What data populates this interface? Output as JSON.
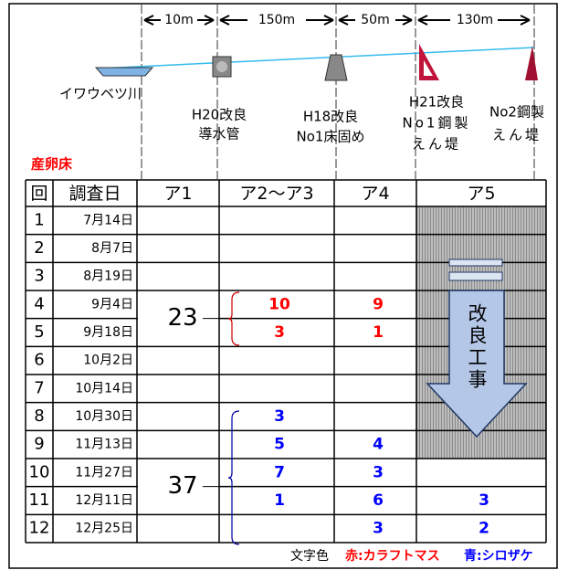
{
  "diagram": {
    "distances": [
      "10m",
      "150m",
      "50m",
      "130m"
    ],
    "structures": [
      {
        "lines": [
          "イワウベツ川"
        ]
      },
      {
        "lines": [
          "H20改良",
          "導水管"
        ]
      },
      {
        "lines": [
          "H18改良",
          "No1床固め"
        ]
      },
      {
        "lines": [
          "H21改良",
          "No1鋼製",
          "えん堤"
        ]
      },
      {
        "lines": [
          "No2鋼製",
          "えん堤"
        ]
      }
    ]
  },
  "spawning_label": "産卵床",
  "table": {
    "headers": [
      "回",
      "調査日",
      "ア1",
      "ア2～ア3",
      "ア4",
      "ア5"
    ],
    "rows": [
      {
        "no": "1",
        "date": "7月14日",
        "cells": [
          null,
          null,
          null,
          null
        ]
      },
      {
        "no": "2",
        "date": "8月7日",
        "cells": [
          null,
          null,
          null,
          null
        ]
      },
      {
        "no": "3",
        "date": "8月19日",
        "cells": [
          null,
          null,
          null,
          null
        ]
      },
      {
        "no": "4",
        "date": "9月4日",
        "cells": [
          {
            "value": 23,
            "color": "#000000"
          },
          {
            "value": 10,
            "color": "#ff0000"
          },
          {
            "value": 9,
            "color": "#ff0000"
          },
          null
        ]
      },
      {
        "no": "5",
        "date": "9月18日",
        "cells": [
          null,
          {
            "value": 3,
            "color": "#ff0000"
          },
          {
            "value": 1,
            "color": "#ff0000"
          },
          null
        ]
      },
      {
        "no": "6",
        "date": "10月2日",
        "cells": [
          null,
          null,
          null,
          null
        ]
      },
      {
        "no": "7",
        "date": "10月14日",
        "cells": [
          null,
          null,
          null,
          null
        ]
      },
      {
        "no": "8",
        "date": "10月30日",
        "cells": [
          null,
          {
            "value": 3,
            "color": "#0000ff"
          },
          null,
          null
        ]
      },
      {
        "no": "9",
        "date": "11月13日",
        "cells": [
          null,
          {
            "value": 5,
            "color": "#0000ff"
          },
          {
            "value": 4,
            "color": "#0000ff"
          },
          null
        ]
      },
      {
        "no": "10",
        "date": "11月27日",
        "cells": [
          {
            "value": 37,
            "color": "#000000"
          },
          {
            "value": 7,
            "color": "#0000ff"
          },
          {
            "value": 3,
            "color": "#0000ff"
          },
          null
        ]
      },
      {
        "no": "11",
        "date": "12月11日",
        "cells": [
          null,
          {
            "value": 1,
            "color": "#0000ff"
          },
          {
            "value": 6,
            "color": "#0000ff"
          },
          {
            "value": 3,
            "color": "#0000ff"
          }
        ]
      },
      {
        "no": "12",
        "date": "12月25日",
        "cells": [
          null,
          null,
          {
            "value": 3,
            "color": "#0000ff"
          },
          {
            "value": 2,
            "color": "#0000ff"
          }
        ]
      }
    ],
    "arrow_text": "改良工事"
  },
  "legend": {
    "prefix": "文字色",
    "items": [
      {
        "label": "赤:カラフトマス",
        "color": "#ff0000"
      },
      {
        "label": "青:シロザケ",
        "color": "#0000ff"
      }
    ]
  }
}
